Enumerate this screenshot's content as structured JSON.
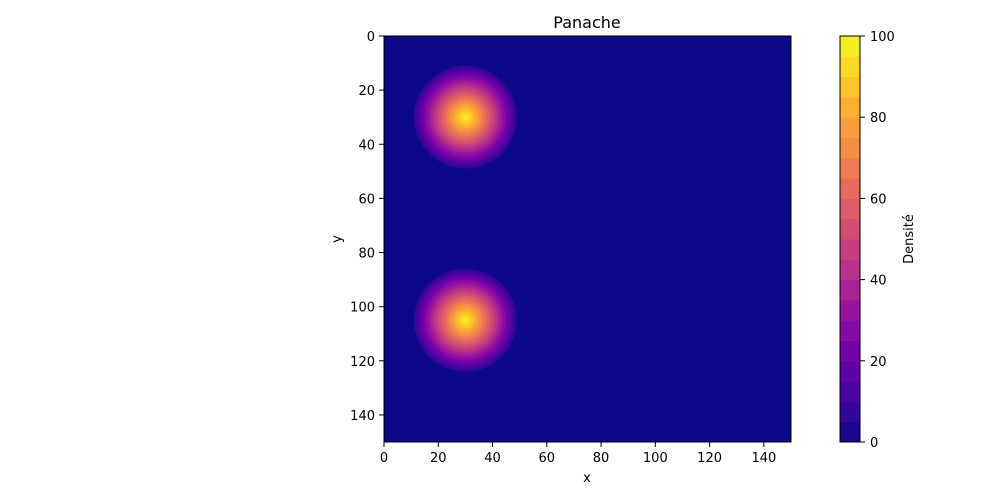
{
  "chart_data": {
    "type": "heatmap",
    "title": "Panache",
    "xlabel": "x",
    "ylabel": "y",
    "xlim": [
      0,
      150
    ],
    "ylim": [
      150,
      0
    ],
    "x_ticks": [
      0,
      20,
      40,
      60,
      80,
      100,
      120,
      140
    ],
    "y_ticks": [
      0,
      20,
      40,
      60,
      80,
      100,
      120,
      140
    ],
    "grid": false,
    "colormap": "plasma",
    "levels": 20,
    "background_value": 0,
    "sources": [
      {
        "x": 30,
        "y": 30,
        "peak": 100,
        "radius": 20
      },
      {
        "x": 30,
        "y": 105,
        "peak": 100,
        "radius": 20
      }
    ],
    "colorbar": {
      "label": "Densité",
      "min": 0,
      "max": 100,
      "ticks": [
        0,
        20,
        40,
        60,
        80,
        100
      ]
    }
  }
}
